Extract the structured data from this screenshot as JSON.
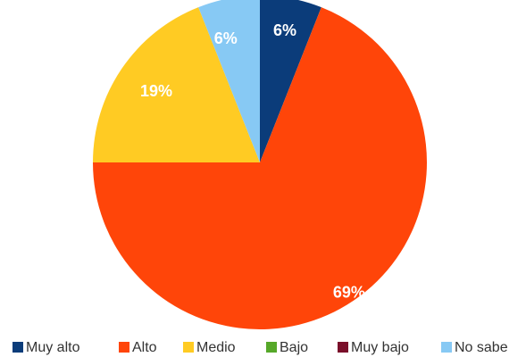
{
  "chart_data": {
    "type": "pie",
    "title": "",
    "categories": [
      "Muy alto",
      "Alto",
      "Medio",
      "Bajo",
      "Muy bajo",
      "No sabe"
    ],
    "values": [
      6,
      69,
      19,
      0,
      0,
      6
    ],
    "labels": [
      "6%",
      "69%",
      "19%",
      "",
      "",
      "6%"
    ],
    "colors": [
      "#0b3c7a",
      "#ff4509",
      "#ffcb23",
      "#56a829",
      "#7a0f2a",
      "#87c9f4"
    ],
    "legend_placement": "bottom",
    "start_angle": "top",
    "direction": "clockwise"
  }
}
